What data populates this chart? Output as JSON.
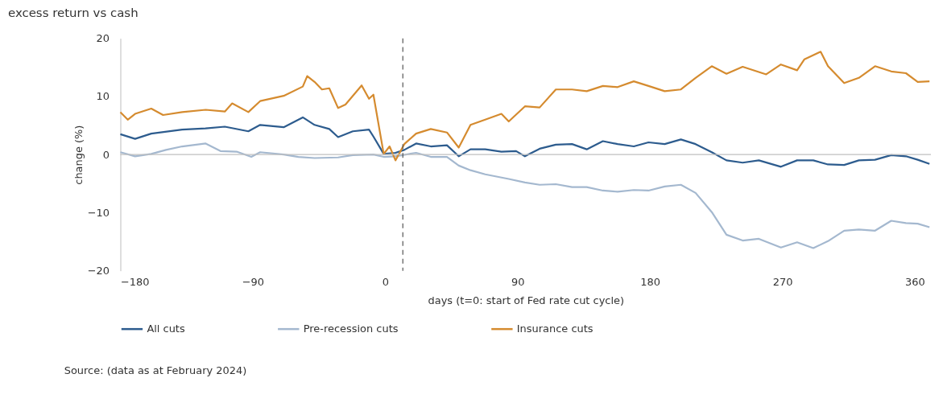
{
  "chart_data": {
    "type": "line",
    "title": "excess return vs cash",
    "xlabel": "days (t=0: start of Fed rate cut cycle)",
    "ylabel": "change (%)",
    "xlim": [
      -180,
      371
    ],
    "xticks": [
      -180,
      -90,
      0,
      90,
      180,
      270,
      360
    ],
    "ylim": [
      -20,
      20
    ],
    "yticks": [
      -20,
      -10,
      0,
      10,
      20
    ],
    "grid": false,
    "legend": "bottom",
    "line_style": "solid",
    "marker": "none",
    "ref_lines": [
      {
        "axis": "y",
        "value": 0,
        "color": "#bfbfbf",
        "line_style": "solid"
      },
      {
        "axis": "x",
        "value": 12,
        "color": "#555555",
        "line_style": "dashed"
      }
    ],
    "annotations": [
      "Source: (data as at February 2024)"
    ],
    "series": [
      {
        "name": "All cuts",
        "color": "#2d5c8e",
        "x": [
          -180,
          -170,
          -159,
          -138,
          -122,
          -109,
          -93,
          -85,
          -69,
          -56,
          -48,
          -38,
          -32,
          -22,
          -11,
          -8,
          -1,
          7,
          13,
          21,
          31,
          42,
          50,
          58,
          68,
          79,
          89,
          95,
          105,
          116,
          127,
          137,
          148,
          158,
          169,
          179,
          190,
          201,
          211,
          222,
          232,
          243,
          254,
          269,
          280,
          291,
          301,
          312,
          322,
          333,
          344,
          354,
          362,
          370
        ],
        "values": [
          3.5,
          2.7,
          3.6,
          4.3,
          4.5,
          4.8,
          4.0,
          5.1,
          4.7,
          6.4,
          5.1,
          4.4,
          3.0,
          4.0,
          4.3,
          3.1,
          0.1,
          0.3,
          0.8,
          1.9,
          1.4,
          1.6,
          -0.3,
          0.9,
          0.9,
          0.5,
          0.6,
          -0.3,
          1.0,
          1.7,
          1.8,
          0.9,
          2.3,
          1.8,
          1.4,
          2.1,
          1.8,
          2.6,
          1.8,
          0.4,
          -1.0,
          -1.4,
          -1.0,
          -2.1,
          -1.0,
          -1.0,
          -1.7,
          -1.8,
          -1.0,
          -0.9,
          -0.1,
          -0.3,
          -0.9,
          -1.6
        ]
      },
      {
        "name": "Pre-recession cuts",
        "color": "#a4b8cf",
        "x": [
          -180,
          -170,
          -159,
          -149,
          -138,
          -122,
          -112,
          -101,
          -91,
          -85,
          -69,
          -59,
          -48,
          -32,
          -22,
          -8,
          -1,
          7,
          21,
          31,
          42,
          50,
          58,
          68,
          84,
          95,
          105,
          116,
          127,
          137,
          148,
          158,
          169,
          179,
          190,
          201,
          211,
          222,
          232,
          243,
          254,
          269,
          280,
          291,
          301,
          312,
          322,
          333,
          344,
          354,
          362,
          370
        ],
        "values": [
          0.4,
          -0.3,
          0.1,
          0.8,
          1.4,
          1.9,
          0.6,
          0.5,
          -0.4,
          0.4,
          0,
          -0.4,
          -0.6,
          -0.5,
          -0.1,
          0,
          -0.4,
          -0.3,
          0.3,
          -0.4,
          -0.4,
          -1.9,
          -2.7,
          -3.4,
          -4.2,
          -4.8,
          -5.2,
          -5.1,
          -5.6,
          -5.6,
          -6.2,
          -6.4,
          -6.1,
          -6.2,
          -5.5,
          -5.2,
          -6.6,
          -9.9,
          -13.8,
          -14.8,
          -14.5,
          -16.0,
          -15.1,
          -16.1,
          -14.9,
          -13.1,
          -12.9,
          -13.1,
          -11.4,
          -11.8,
          -11.9,
          -12.5
        ]
      },
      {
        "name": "Insurance cuts",
        "color": "#d58b2f",
        "x": [
          -180,
          -175,
          -170,
          -159,
          -151,
          -138,
          -122,
          -109,
          -104,
          -93,
          -85,
          -69,
          -56,
          -53,
          -48,
          -43,
          -38,
          -32,
          -27,
          -16,
          -11,
          -8,
          -1,
          3,
          7,
          13,
          21,
          31,
          42,
          50,
          58,
          68,
          79,
          84,
          95,
          105,
          116,
          127,
          137,
          148,
          158,
          169,
          179,
          190,
          201,
          211,
          222,
          232,
          243,
          259,
          269,
          280,
          285,
          296,
          301,
          312,
          322,
          333,
          344,
          354,
          362,
          370
        ],
        "values": [
          7.3,
          6.0,
          7.0,
          7.9,
          6.8,
          7.3,
          7.7,
          7.4,
          8.8,
          7.3,
          9.2,
          10.1,
          11.7,
          13.5,
          12.5,
          11.2,
          11.4,
          8.0,
          8.6,
          11.9,
          9.6,
          10.3,
          0.1,
          1.4,
          -1.0,
          1.8,
          3.6,
          4.4,
          3.8,
          1.2,
          5.1,
          6.0,
          7.0,
          5.7,
          8.3,
          8.1,
          11.2,
          11.2,
          10.9,
          11.8,
          11.6,
          12.6,
          11.8,
          10.9,
          11.2,
          13.2,
          15.2,
          13.9,
          15.1,
          13.8,
          15.5,
          14.5,
          16.4,
          17.7,
          15.2,
          12.3,
          13.2,
          15.2,
          14.3,
          14.0,
          12.5,
          12.6
        ]
      }
    ]
  }
}
